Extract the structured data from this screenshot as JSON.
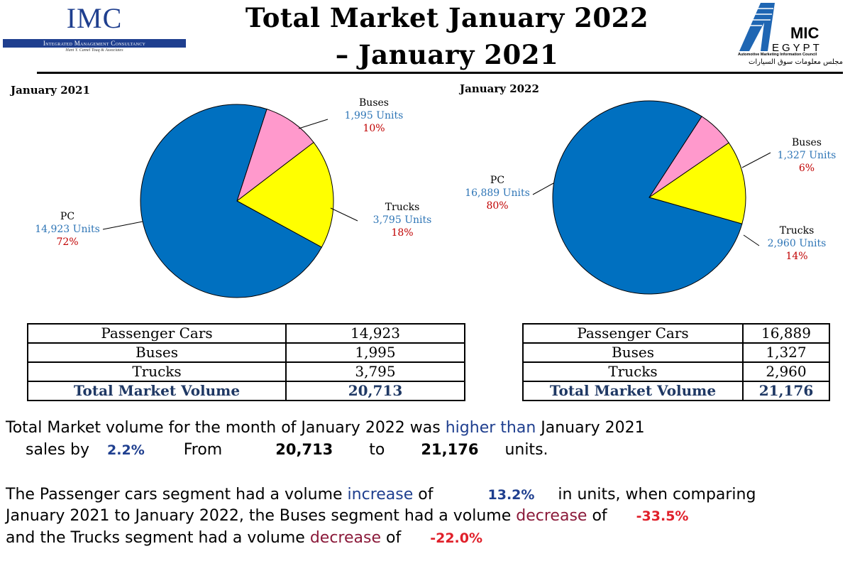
{
  "header": {
    "title_line1": "Total Market January 2022",
    "title_line2": "– January 2021",
    "imc_logo": {
      "word": "IMC",
      "band": "Integrated Management Consultancy",
      "sub": "Hani Y. Camel Touq & Associates"
    },
    "amic_logo": {
      "word_top": "MIC",
      "word_bottom": "EGYPT",
      "tagline": "Automotive Marketing Information Council",
      "arabic": "مجلس معلومات سوق السيارات"
    }
  },
  "chart_data": [
    {
      "type": "pie",
      "title": "January 2021",
      "slices": [
        {
          "name": "PC",
          "units": "14,923 Units",
          "pct": "72%",
          "value": 14923,
          "color": "#0070c0"
        },
        {
          "name": "Buses",
          "units": "1,995  Units",
          "pct": "10%",
          "value": 1995,
          "color": "#ff99cc"
        },
        {
          "name": "Trucks",
          "units": "3,795 Units",
          "pct": "18%",
          "value": 3795,
          "color": "#ffff00"
        }
      ]
    },
    {
      "type": "pie",
      "title": "January 2022",
      "slices": [
        {
          "name": "PC",
          "units": "16,889 Units",
          "pct": "80%",
          "value": 16889,
          "color": "#0070c0"
        },
        {
          "name": "Buses",
          "units": "1,327 Units",
          "pct": "6%",
          "value": 1327,
          "color": "#ff99cc"
        },
        {
          "name": "Trucks",
          "units": "2,960 Units",
          "pct": "14%",
          "value": 2960,
          "color": "#ffff00"
        }
      ]
    }
  ],
  "tables": [
    {
      "rows": [
        {
          "label": "Passenger Cars",
          "value": "14,923"
        },
        {
          "label": "Buses",
          "value": "1,995"
        },
        {
          "label": "Trucks",
          "value": "3,795"
        }
      ],
      "total": {
        "label": "Total Market Volume",
        "value": "20,713"
      }
    },
    {
      "rows": [
        {
          "label": "Passenger Cars",
          "value": "16,889"
        },
        {
          "label": "Buses",
          "value": "1,327"
        },
        {
          "label": "Trucks",
          "value": "2,960"
        }
      ],
      "total": {
        "label": "Total Market Volume",
        "value": "21,176"
      }
    }
  ],
  "summary": {
    "p1_a": "Total Market volume for the month of January 2022 was",
    "p1_b": "higher than",
    "p1_c": "January 2021",
    "p1_d": "sales by",
    "p1_pct": "2.2%",
    "p1_from": "From",
    "p1_v1": "20,713",
    "p1_to": "to",
    "p1_v2": "21,176",
    "p1_units": "units.",
    "p2_a": "The Passenger cars segment had a volume",
    "p2_b": "increase",
    "p2_c": "of",
    "p2_pct": "13.2%",
    "p2_d": "in units, when comparing",
    "p2_e": "January 2021 to January 2022, the Buses segment had a volume",
    "p2_f": "decrease",
    "p2_g": "of",
    "p2_pct2": "-33.5%",
    "p2_h": "and the Trucks segment had a volume",
    "p2_i": "decrease",
    "p2_j": "of",
    "p2_pct3": "-22.0%"
  }
}
